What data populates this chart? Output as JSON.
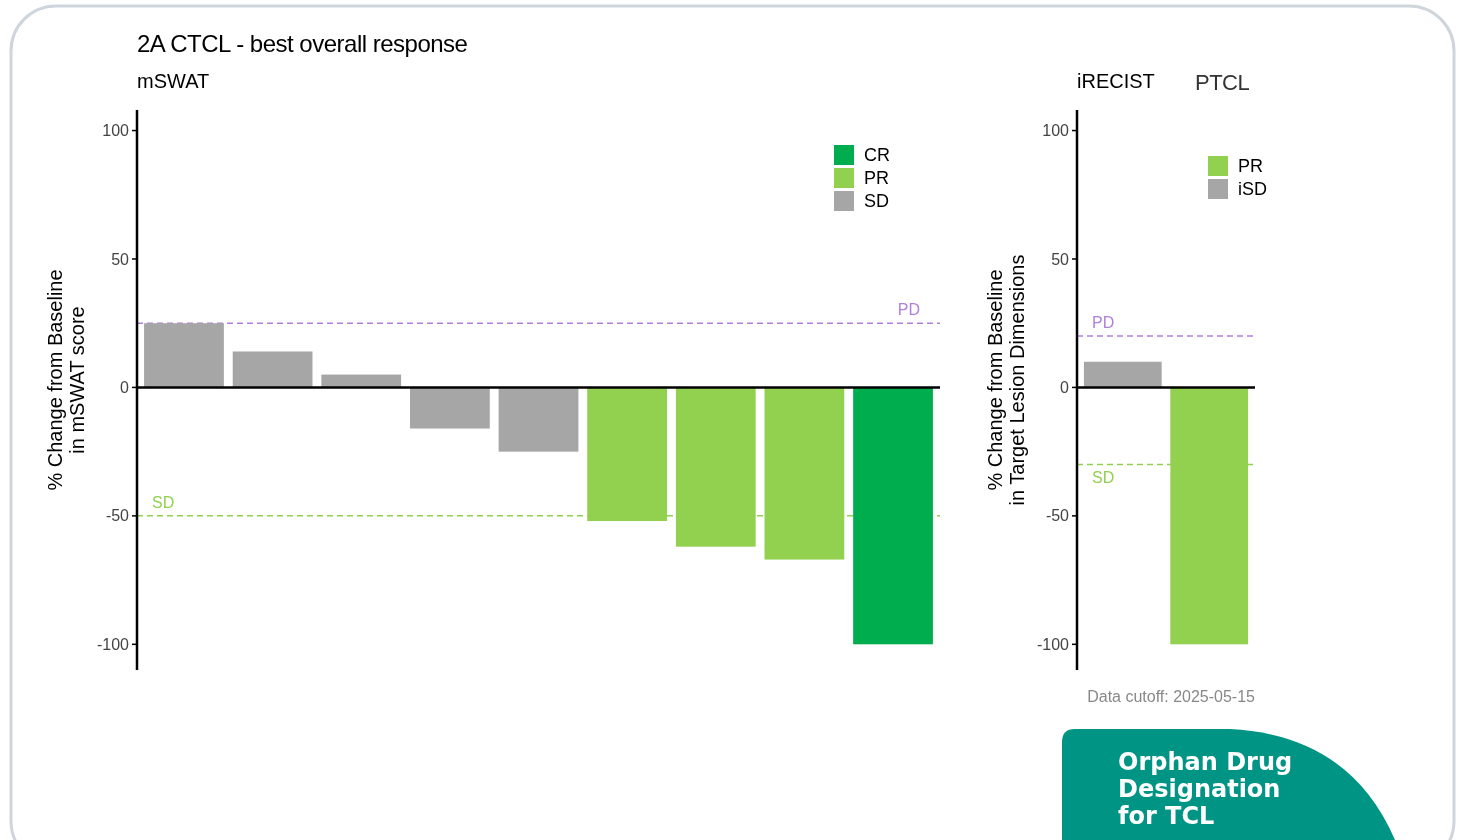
{
  "chart_data": [
    {
      "type": "bar",
      "title": "2A CTCL - best overall response",
      "subtitle": "mSWAT",
      "ylabel": "% Change from Baseline\nin mSWAT score",
      "categories": [
        null,
        null,
        null,
        null,
        null,
        null,
        null,
        null,
        null
      ],
      "series": [
        {
          "name": "CR",
          "color": "#00ad4e",
          "values": [
            null,
            null,
            null,
            null,
            null,
            null,
            null,
            null,
            -100
          ]
        },
        {
          "name": "PR",
          "color": "#92d050",
          "values": [
            null,
            null,
            null,
            null,
            null,
            -52,
            -62,
            -67,
            null
          ]
        },
        {
          "name": "SD",
          "color": "#a6a6a6",
          "values": [
            25,
            14,
            5,
            -16,
            -25,
            null,
            null,
            null,
            null
          ]
        }
      ],
      "ylim": [
        -110,
        108
      ],
      "yticks": [
        100,
        50,
        0,
        -50,
        -100
      ],
      "ref_lines": [
        {
          "axis": "y",
          "value": 25,
          "label": "PD",
          "color": "#b07fdc",
          "line_style": "dashed"
        },
        {
          "axis": "y",
          "value": -50,
          "label": "SD",
          "color": "#92d050",
          "line_style": "dashed"
        }
      ],
      "legend": "top right"
    },
    {
      "type": "bar",
      "title": "PTCL",
      "subtitle": "iRECIST",
      "ylabel": "% Change from Baseline\nin Target Lesion Dimensions",
      "categories": [
        null,
        null
      ],
      "series": [
        {
          "name": "PR",
          "color": "#92d050",
          "values": [
            null,
            -100
          ]
        },
        {
          "name": "iSD",
          "color": "#a6a6a6",
          "values": [
            10,
            null
          ]
        }
      ],
      "ylim": [
        -110,
        108
      ],
      "yticks": [
        100,
        50,
        0,
        -50,
        -100
      ],
      "ref_lines": [
        {
          "axis": "y",
          "value": 20,
          "label": "PD",
          "color": "#b07fdc",
          "line_style": "dashed"
        },
        {
          "axis": "y",
          "value": -30,
          "label": "SD",
          "color": "#92d050",
          "line_style": "dashed"
        }
      ],
      "legend": "top right",
      "annotations": [
        "Data cutoff: 2025-05-15",
        "Orphan Drug Designation for TCL"
      ]
    }
  ]
}
